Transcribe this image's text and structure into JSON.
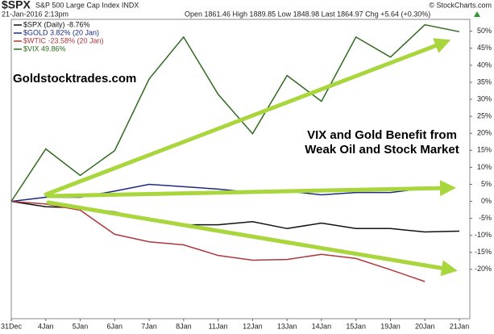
{
  "chart_data": {
    "type": "line",
    "title": "$SPX",
    "subtitle": "S&P 500 Large Cap Index INDX",
    "date": "21-Jan-2016 2:13pm",
    "quote": "Open 1861.46  High 1889.85  Low 1848.98  Last 1864.97  Chg +5.64 (+0.30%)",
    "source": "© StockCharts.com",
    "annotations": [
      "Goldstocktrades.com",
      "VIX and Gold Benefit from",
      "Weak Oil and Stock Market"
    ],
    "categories": [
      "31Dec",
      "4Jan",
      "5Jan",
      "6Jan",
      "7Jan",
      "8Jan",
      "11Jan",
      "12Jan",
      "13Jan",
      "14Jan",
      "15Jan",
      "19Jan",
      "20Jan",
      "21Jan"
    ],
    "series": [
      {
        "name": "$SPX (Daily) -8.76%",
        "color": "#111111",
        "values": [
          0,
          -1.6,
          -1.9,
          -3.1,
          -5.5,
          -6.9,
          -6.9,
          -6,
          -8,
          -6.4,
          -8,
          -8,
          -9,
          -8.76
        ]
      },
      {
        "name": "$GOLD 3.82% (20 Jan)",
        "color": "#1c2a80",
        "values": [
          0,
          1.2,
          1.2,
          3,
          5,
          4.3,
          3.6,
          2.6,
          3,
          1.9,
          2.6,
          2.6,
          3.82,
          null
        ]
      },
      {
        "name": "$WTIC -23.58% (20 Jan)",
        "color": "#b0383c",
        "values": [
          0,
          -0.8,
          -2.6,
          -9.7,
          -11.9,
          -12.8,
          -15.9,
          -17.3,
          -17.1,
          -15.6,
          -16.8,
          -20.1,
          -23.58,
          null
        ]
      },
      {
        "name": "$VIX 49.86%",
        "color": "#2f6a1f",
        "values": [
          0,
          15.4,
          7.6,
          14.9,
          36,
          48.3,
          31.5,
          19.9,
          37,
          29.4,
          48.3,
          42.4,
          51.9,
          49.86
        ]
      }
    ],
    "ylim": [
      -34.5,
      53.5
    ],
    "yticks": [
      {
        "value": 50,
        "label": "50%"
      },
      {
        "value": 45,
        "label": "45%"
      },
      {
        "value": 40,
        "label": "40%"
      },
      {
        "value": 35,
        "label": "35%"
      },
      {
        "value": 30,
        "label": "30%"
      },
      {
        "value": 25,
        "label": "25%"
      },
      {
        "value": 20,
        "label": "20%"
      },
      {
        "value": 15,
        "label": "15%"
      },
      {
        "value": 10,
        "label": "10%"
      },
      {
        "value": 5,
        "label": "5%"
      },
      {
        "value": 0,
        "label": "0%"
      },
      {
        "value": -5,
        "label": "-5%"
      },
      {
        "value": -10,
        "label": "-10%"
      },
      {
        "value": -15,
        "label": "-15%"
      },
      {
        "value": -20,
        "label": "-20%"
      }
    ],
    "grid": false
  }
}
